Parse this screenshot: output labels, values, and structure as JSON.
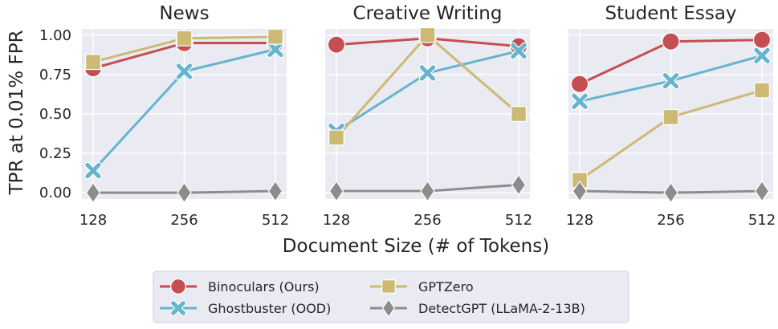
{
  "chart_data": {
    "type": "line",
    "x": [
      128,
      256,
      512
    ],
    "xtick_labels": [
      "128",
      "256",
      "512"
    ],
    "xlabel": "Document Size (# of Tokens)",
    "ylabel": "TPR at 0.01% FPR",
    "ylim": [
      -0.04,
      1.04
    ],
    "yticks": [
      0.0,
      0.25,
      0.5,
      0.75,
      1.0
    ],
    "ytick_labels": [
      "0.00",
      "0.25",
      "0.50",
      "0.75",
      "1.00"
    ],
    "grid": true,
    "legend_position": "bottom-center",
    "panels": [
      {
        "title": "News",
        "series": [
          {
            "name": "Binoculars (Ours)",
            "color": "#c44e52",
            "marker": "circle",
            "values": [
              0.79,
              0.95,
              0.95
            ]
          },
          {
            "name": "Ghostbuster (OOD)",
            "color": "#64b5cd",
            "marker": "x",
            "values": [
              0.14,
              0.77,
              0.91
            ]
          },
          {
            "name": "GPTZero",
            "color": "#ccb974",
            "marker": "square",
            "values": [
              0.83,
              0.98,
              0.99
            ]
          },
          {
            "name": "DetectGPT (LLaMA-2-13B)",
            "color": "#8c8c8c",
            "marker": "diamond",
            "values": [
              0.0,
              0.0,
              0.01
            ]
          }
        ]
      },
      {
        "title": "Creative Writing",
        "series": [
          {
            "name": "Binoculars (Ours)",
            "color": "#c44e52",
            "marker": "circle",
            "values": [
              0.94,
              0.98,
              0.93
            ]
          },
          {
            "name": "Ghostbuster (OOD)",
            "color": "#64b5cd",
            "marker": "x",
            "values": [
              0.39,
              0.76,
              0.9
            ]
          },
          {
            "name": "GPTZero",
            "color": "#ccb974",
            "marker": "square",
            "values": [
              0.35,
              1.0,
              0.5
            ]
          },
          {
            "name": "DetectGPT (LLaMA-2-13B)",
            "color": "#8c8c8c",
            "marker": "diamond",
            "values": [
              0.01,
              0.01,
              0.05
            ]
          }
        ]
      },
      {
        "title": "Student Essay",
        "series": [
          {
            "name": "Binoculars (Ours)",
            "color": "#c44e52",
            "marker": "circle",
            "values": [
              0.69,
              0.96,
              0.97
            ]
          },
          {
            "name": "Ghostbuster (OOD)",
            "color": "#64b5cd",
            "marker": "x",
            "values": [
              0.58,
              0.71,
              0.87
            ]
          },
          {
            "name": "GPTZero",
            "color": "#ccb974",
            "marker": "square",
            "values": [
              0.08,
              0.48,
              0.65
            ]
          },
          {
            "name": "DetectGPT (LLaMA-2-13B)",
            "color": "#8c8c8c",
            "marker": "diamond",
            "values": [
              0.01,
              0.0,
              0.01
            ]
          }
        ]
      }
    ],
    "legend": [
      {
        "name": "Binoculars (Ours)",
        "color": "#c44e52",
        "marker": "circle"
      },
      {
        "name": "GPTZero",
        "color": "#ccb974",
        "marker": "square"
      },
      {
        "name": "Ghostbuster (OOD)",
        "color": "#64b5cd",
        "marker": "x"
      },
      {
        "name": "DetectGPT (LLaMA-2-13B)",
        "color": "#8c8c8c",
        "marker": "diamond"
      }
    ]
  }
}
